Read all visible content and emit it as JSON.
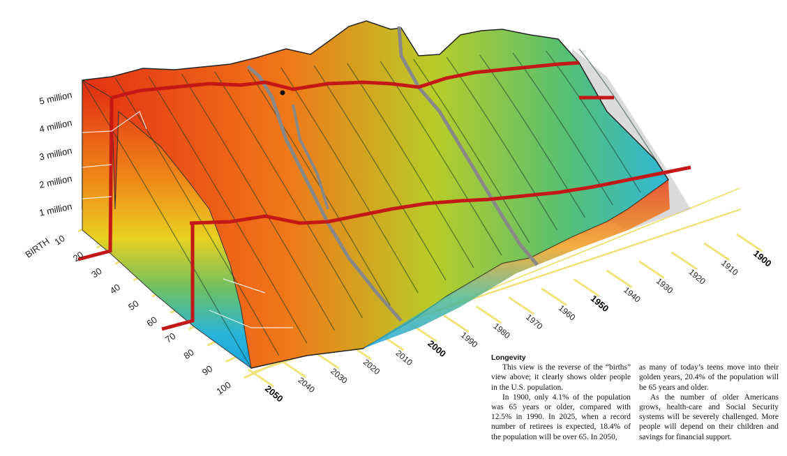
{
  "chart_data": {
    "type": "area",
    "subtype": "3d-surface",
    "title": "",
    "y_axis_labels": [
      "5 million",
      "4 million",
      "3 million",
      "2 million",
      "1 million"
    ],
    "y_values": [
      5000000,
      4000000,
      3000000,
      2000000,
      1000000
    ],
    "age_axis_title": "BIRTH",
    "age_labels": [
      "10",
      "20",
      "30",
      "40",
      "50",
      "60",
      "70",
      "80",
      "90",
      "100"
    ],
    "ages": [
      10,
      20,
      30,
      40,
      50,
      60,
      70,
      80,
      90,
      100
    ],
    "year_labels": [
      "2050",
      "2040",
      "2030",
      "2020",
      "2010",
      "2000",
      "1990",
      "1980",
      "1970",
      "1960",
      "1950",
      "1940",
      "1930",
      "1920",
      "1910",
      "1900"
    ],
    "bold_years": [
      "2050",
      "2000",
      "1950",
      "1900"
    ],
    "colors": {
      "high": "#e03018",
      "mid": "#f0a018",
      "low": "#20b0e0",
      "gridline": "#f2e27a",
      "marker": "#c81818"
    }
  },
  "caption": {
    "title": "Longevity",
    "col1": [
      "This view is the reverse of the “births” view above; it clearly shows older people in the U.S. population.",
      "In 1900, only 4.1% of the population was 65 years or older, compared with 12.5% in 1990. In 2025, when a record number of retirees is expected, 18.4% of the population will be over 65. In 2050,"
    ],
    "col2": [
      "as many of today’s teens move into their golden years, 20.4% of the population will be 65 years and older.",
      "As the number of older Americans grows, health-care and Social Security systems will be severely challenged. More people will depend on their children and savings for financial support."
    ]
  }
}
